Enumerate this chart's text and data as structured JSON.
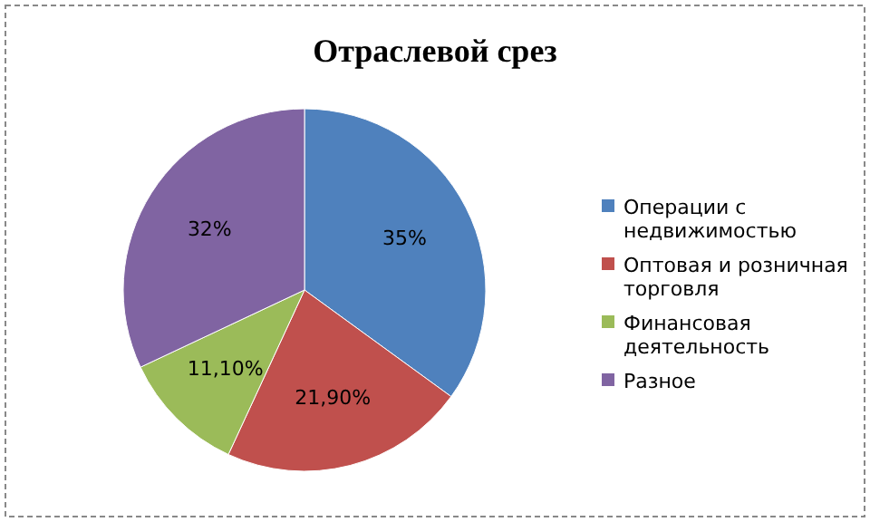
{
  "chart_data": {
    "type": "pie",
    "title": "Отраслевой срез",
    "categories": [
      "Операции с недвижимостью",
      "Оптовая и розничная торговля",
      "Финансовая деятельность",
      "Разное"
    ],
    "values": [
      35,
      21.9,
      11.1,
      32
    ],
    "value_labels": [
      "35%",
      "21,90%",
      "11,10%",
      "32%"
    ],
    "colors": [
      "#4f81bd",
      "#c0504d",
      "#9bbb59",
      "#8064a2"
    ],
    "legend": "right"
  }
}
